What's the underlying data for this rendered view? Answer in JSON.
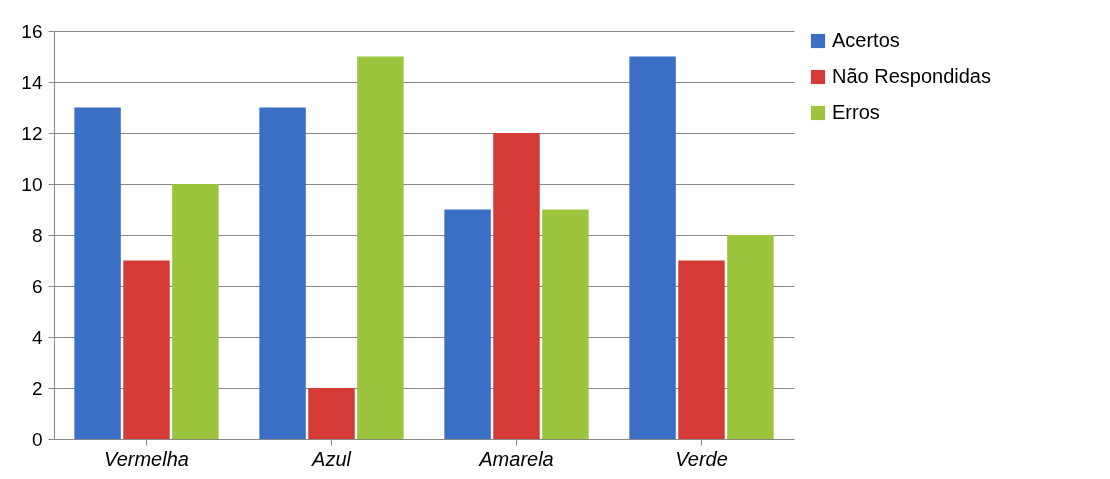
{
  "chart_data": {
    "type": "bar",
    "categories": [
      "Vermelha",
      "Azul",
      "Amarela",
      "Verde"
    ],
    "series": [
      {
        "name": "Acertos",
        "color": "#3b6fc6",
        "values": [
          13,
          13,
          9,
          15
        ]
      },
      {
        "name": "Não Respondidas",
        "color": "#d43b36",
        "values": [
          7,
          2,
          12,
          7
        ]
      },
      {
        "name": "Erros",
        "color": "#9cc43c",
        "values": [
          10,
          15,
          9,
          8
        ]
      }
    ],
    "ylim": [
      0,
      16
    ],
    "yticks": [
      0,
      2,
      4,
      6,
      8,
      10,
      12,
      14,
      16
    ],
    "grid": "y",
    "legend": "right"
  }
}
